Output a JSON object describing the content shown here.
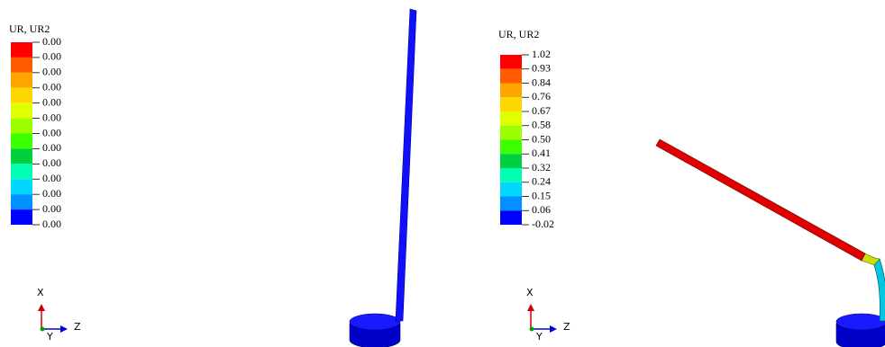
{
  "panels": [
    {
      "legend": {
        "title": "UR, UR2",
        "labels": [
          "0.00",
          "0.00",
          "0.00",
          "0.00",
          "0.00",
          "0.00",
          "0.00",
          "0.00",
          "0.00",
          "0.00",
          "0.00",
          "0.00",
          "0.00"
        ],
        "colors": [
          "#ff0000",
          "#ff5c00",
          "#ffa500",
          "#ffd700",
          "#e0ff00",
          "#9bff00",
          "#3cff00",
          "#00d040",
          "#00ffb0",
          "#00d8ff",
          "#0090ff",
          "#0000ff"
        ]
      },
      "triad": {
        "x": "X",
        "y": "Y",
        "z": "Z"
      }
    },
    {
      "legend": {
        "title": "UR, UR2",
        "labels": [
          "1.02",
          "0.93",
          "0.84",
          "0.76",
          "0.67",
          "0.58",
          "0.50",
          "0.41",
          "0.32",
          "0.24",
          "0.15",
          "0.06",
          "-0.02"
        ],
        "colors": [
          "#ff0000",
          "#ff5c00",
          "#ffa500",
          "#ffd700",
          "#e0ff00",
          "#9bff00",
          "#3cff00",
          "#00d040",
          "#00ffb0",
          "#00d8ff",
          "#0090ff",
          "#0000ff"
        ]
      },
      "triad": {
        "x": "X",
        "y": "Y",
        "z": "Z"
      }
    }
  ]
}
